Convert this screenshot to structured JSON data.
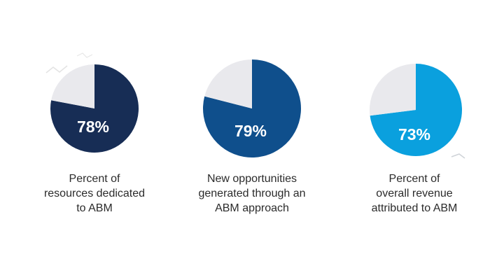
{
  "chart_data": [
    {
      "type": "pie",
      "title": "",
      "categories": [
        "",
        ""
      ],
      "values": [
        78,
        22
      ],
      "label": "78%",
      "caption_lines": [
        "Percent of",
        "resources dedicated",
        "to ABM"
      ],
      "colors": [
        "#172d55",
        "#e9e9ed"
      ]
    },
    {
      "type": "pie",
      "title": "",
      "categories": [
        "",
        ""
      ],
      "values": [
        79,
        21
      ],
      "label": "79%",
      "caption_lines": [
        "New opportunities",
        "generated through an",
        "ABM approach"
      ],
      "colors": [
        "#0f4f8c",
        "#e9e9ed"
      ]
    },
    {
      "type": "pie",
      "title": "",
      "categories": [
        "",
        ""
      ],
      "values": [
        73,
        27
      ],
      "label": "73%",
      "caption_lines": [
        "Percent of",
        "overall revenue",
        "attributed to ABM"
      ],
      "colors": [
        "#0aa0de",
        "#e9e9ed"
      ]
    }
  ]
}
